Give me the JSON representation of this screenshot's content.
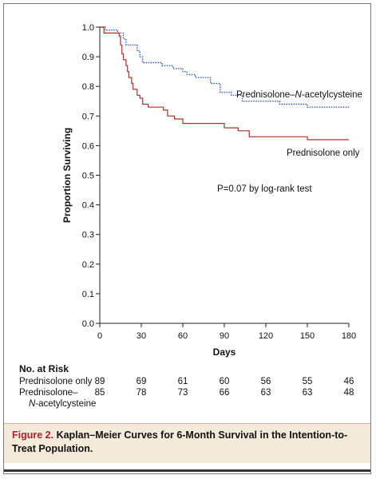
{
  "chart_data": {
    "type": "line",
    "subtype": "kaplan-meier",
    "xlabel": "Days",
    "ylabel": "Proportion Surviving",
    "xlim": [
      0,
      180
    ],
    "ylim": [
      0.0,
      1.0
    ],
    "x_ticks": [
      "0",
      "30",
      "60",
      "90",
      "120",
      "150",
      "180"
    ],
    "y_ticks": [
      "0.0",
      "0.1",
      "0.2",
      "0.3",
      "0.4",
      "0.5",
      "0.6",
      "0.7",
      "0.8",
      "0.9",
      "1.0"
    ],
    "grid": false,
    "annotation": "P=0.07 by log-rank test",
    "series": [
      {
        "name": "Prednisolone–N-acetylcysteine",
        "color": "#2f5fb8",
        "style": "dotted",
        "points": [
          [
            0,
            1.0
          ],
          [
            4,
            1.0
          ],
          [
            4,
            0.99
          ],
          [
            13,
            0.99
          ],
          [
            13,
            0.98
          ],
          [
            17,
            0.98
          ],
          [
            17,
            0.96
          ],
          [
            19,
            0.96
          ],
          [
            19,
            0.94
          ],
          [
            27,
            0.94
          ],
          [
            27,
            0.92
          ],
          [
            29,
            0.92
          ],
          [
            29,
            0.9
          ],
          [
            31,
            0.9
          ],
          [
            31,
            0.88
          ],
          [
            45,
            0.88
          ],
          [
            45,
            0.87
          ],
          [
            53,
            0.87
          ],
          [
            53,
            0.86
          ],
          [
            60,
            0.86
          ],
          [
            60,
            0.85
          ],
          [
            63,
            0.85
          ],
          [
            63,
            0.84
          ],
          [
            69,
            0.84
          ],
          [
            69,
            0.83
          ],
          [
            80,
            0.83
          ],
          [
            80,
            0.81
          ],
          [
            87,
            0.81
          ],
          [
            87,
            0.78
          ],
          [
            95,
            0.78
          ],
          [
            95,
            0.77
          ],
          [
            103,
            0.77
          ],
          [
            103,
            0.75
          ],
          [
            130,
            0.75
          ],
          [
            130,
            0.74
          ],
          [
            150,
            0.74
          ],
          [
            150,
            0.73
          ],
          [
            180,
            0.73
          ]
        ]
      },
      {
        "name": "Prednisolone only",
        "color": "#a8332c",
        "style": "solid",
        "points": [
          [
            0,
            1.0
          ],
          [
            3,
            1.0
          ],
          [
            3,
            0.98
          ],
          [
            14,
            0.98
          ],
          [
            14,
            0.97
          ],
          [
            15,
            0.97
          ],
          [
            15,
            0.94
          ],
          [
            16,
            0.94
          ],
          [
            16,
            0.91
          ],
          [
            17,
            0.91
          ],
          [
            17,
            0.89
          ],
          [
            19,
            0.89
          ],
          [
            19,
            0.87
          ],
          [
            20,
            0.87
          ],
          [
            20,
            0.85
          ],
          [
            21,
            0.85
          ],
          [
            21,
            0.83
          ],
          [
            23,
            0.83
          ],
          [
            23,
            0.81
          ],
          [
            24,
            0.81
          ],
          [
            24,
            0.79
          ],
          [
            27,
            0.79
          ],
          [
            27,
            0.77
          ],
          [
            29,
            0.77
          ],
          [
            29,
            0.76
          ],
          [
            31,
            0.76
          ],
          [
            31,
            0.74
          ],
          [
            35,
            0.74
          ],
          [
            35,
            0.73
          ],
          [
            46,
            0.73
          ],
          [
            46,
            0.72
          ],
          [
            49,
            0.72
          ],
          [
            49,
            0.7
          ],
          [
            54,
            0.7
          ],
          [
            54,
            0.69
          ],
          [
            60,
            0.69
          ],
          [
            60,
            0.675
          ],
          [
            90,
            0.675
          ],
          [
            90,
            0.66
          ],
          [
            100,
            0.66
          ],
          [
            100,
            0.65
          ],
          [
            108,
            0.65
          ],
          [
            108,
            0.63
          ],
          [
            150,
            0.63
          ],
          [
            150,
            0.62
          ],
          [
            180,
            0.62
          ]
        ]
      }
    ],
    "series_labels": [
      "Prednisolone–N-acetylcysteine",
      "Prednisolone only"
    ]
  },
  "risk_table": {
    "title": "No. at Risk",
    "rows": [
      {
        "label": "Prednisolone only",
        "label2": "",
        "values": [
          "89",
          "69",
          "61",
          "60",
          "56",
          "55",
          "46"
        ]
      },
      {
        "label": "Prednisolone–",
        "label2": "N-acetylcysteine",
        "values": [
          "85",
          "78",
          "73",
          "66",
          "63",
          "63",
          "48"
        ]
      }
    ]
  },
  "caption": {
    "figure_label": "Figure 2.",
    "text": "Kaplan–Meier Curves for 6-Month Survival in the Intention-to-Treat Population."
  }
}
